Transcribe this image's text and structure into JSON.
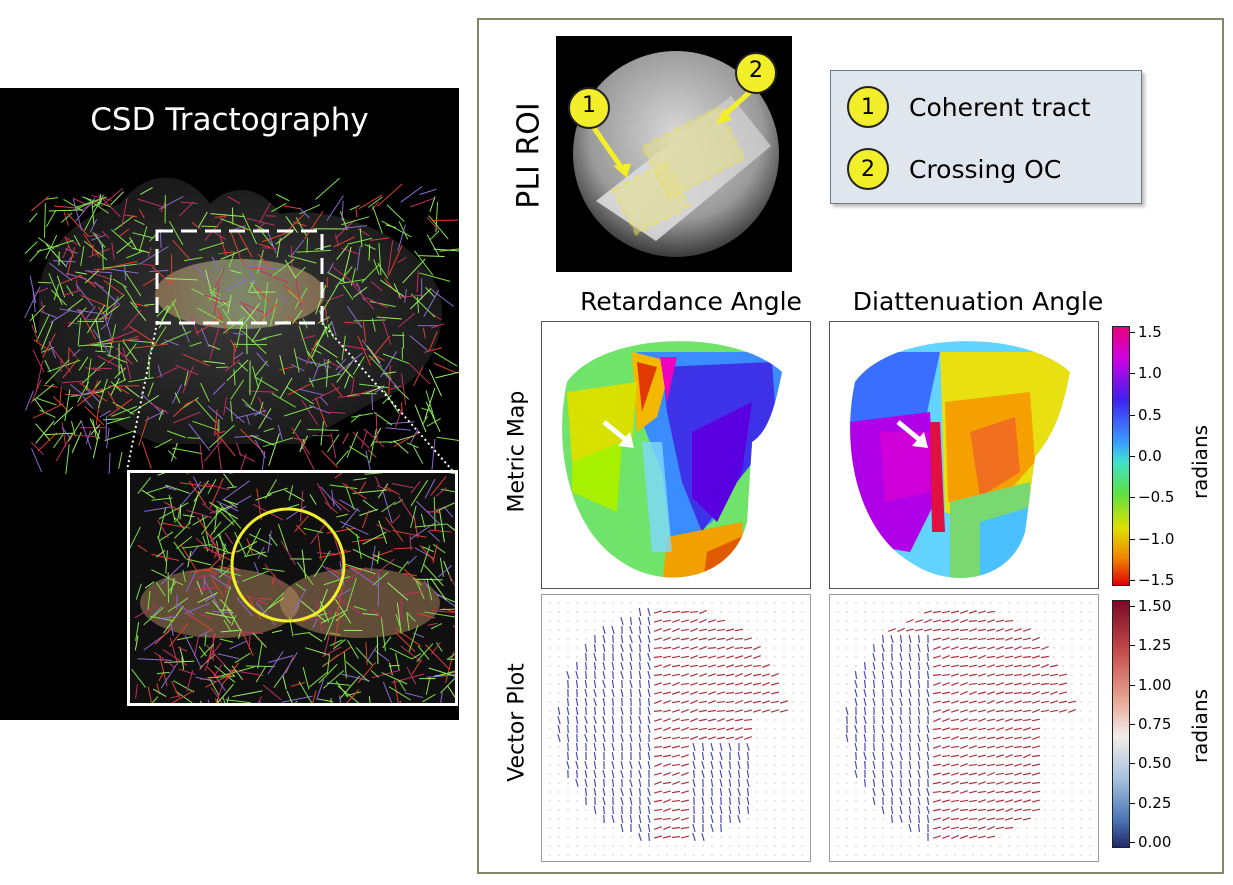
{
  "left": {
    "title": "CSD Tractography"
  },
  "roi": {
    "axis_label": "PLI ROI",
    "markers": [
      "1",
      "2"
    ]
  },
  "legend": {
    "items": [
      {
        "num": "1",
        "label": "Coherent tract"
      },
      {
        "num": "2",
        "label": "Crossing OC"
      }
    ]
  },
  "columns": {
    "left_title": "Retardance Angle",
    "right_title": "Diattenuation Angle"
  },
  "rows": {
    "metric_label": "Metric Map",
    "vector_label": "Vector Plot"
  },
  "colorbar_metric": {
    "label": "radians",
    "ticks": [
      "1.5",
      "1.0",
      "0.5",
      "0.0",
      "−0.5",
      "−1.0",
      "−1.5"
    ],
    "range": [
      -1.5,
      1.5
    ],
    "colormap": "hsv"
  },
  "colorbar_vector": {
    "label": "radians",
    "ticks": [
      "1.50",
      "1.25",
      "1.00",
      "0.75",
      "0.50",
      "0.25",
      "0.00"
    ],
    "range": [
      0.0,
      1.5
    ],
    "colormap": "coolwarm"
  },
  "colors": {
    "frame_border": "#808a66",
    "legend_bg": "#dfe6ee",
    "marker_yellow": "#f3ee2a",
    "roi_outline": "#f0e040",
    "inset_circle": "#f3ee2a"
  }
}
